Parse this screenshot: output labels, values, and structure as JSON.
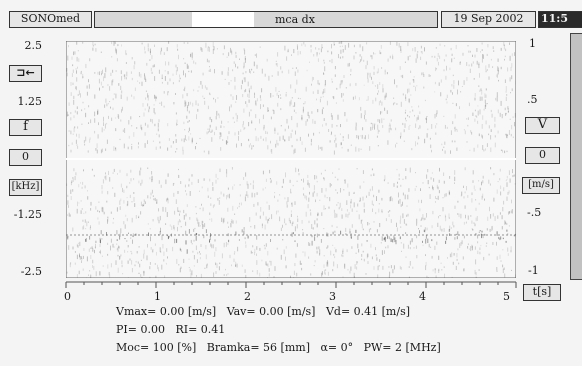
{
  "header": {
    "app_name": "SONOmed",
    "title": "mca dx",
    "date": "19 Sep 2002",
    "time": "11:5"
  },
  "left_controls": {
    "arrow_button": "⊐←",
    "freq_button": "f",
    "baseline_left": "0",
    "unit_left": "[kHz]"
  },
  "right_controls": {
    "velocity_button": "V",
    "baseline_right": "0",
    "unit_right": "[m/s]"
  },
  "axes": {
    "left_ticks": [
      "2.5",
      "1.25",
      "-1.25",
      "-2.5"
    ],
    "right_ticks": [
      "1",
      ".5",
      "-.5",
      "-1"
    ],
    "x_ticks": [
      "0",
      "1",
      "2",
      "3",
      "4",
      "5"
    ],
    "x_unit": "t[s]"
  },
  "measurements": {
    "line1": "Vmax= 0.00 [m/s]   Vav= 0.00 [m/s]   Vd= 0.41 [m/s]",
    "line2": "PI= 0.00   RI= 0.41",
    "line3": "Moc= 100 [%]   Bramka= 56 [mm]   α= 0°   PW= 2 [MHz]"
  }
}
